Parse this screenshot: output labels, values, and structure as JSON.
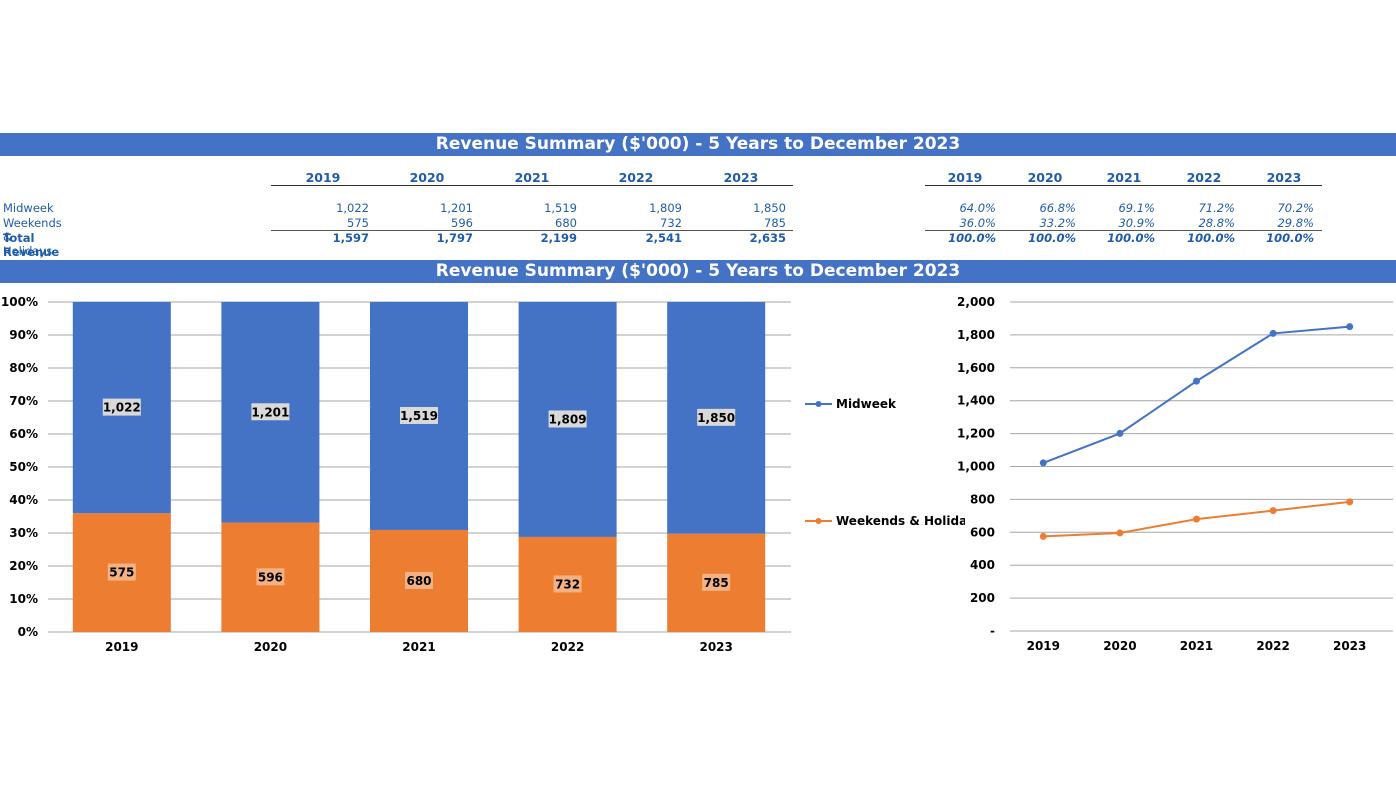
{
  "title1": "Revenue Summary ($'000) - 5 Years to December 2023",
  "title2": "Revenue Summary ($'000) - 5 Years to December 2023",
  "years": [
    "2019",
    "2020",
    "2021",
    "2022",
    "2023"
  ],
  "table": {
    "rows": [
      {
        "label": "Midweek",
        "values": [
          "1,022",
          "1,201",
          "1,519",
          "1,809",
          "1,850"
        ],
        "pct": [
          "64.0%",
          "66.8%",
          "69.1%",
          "71.2%",
          "70.2%"
        ]
      },
      {
        "label": "Weekends & Holidays",
        "values": [
          "575",
          "596",
          "680",
          "732",
          "785"
        ],
        "pct": [
          "36.0%",
          "33.2%",
          "30.9%",
          "28.8%",
          "29.8%"
        ]
      }
    ],
    "total": {
      "label": "Total Revenue",
      "values": [
        "1,597",
        "1,797",
        "2,199",
        "2,541",
        "2,635"
      ],
      "pct": [
        "100.0%",
        "100.0%",
        "100.0%",
        "100.0%",
        "100.0%"
      ]
    }
  },
  "chart_data": [
    {
      "type": "bar",
      "stacked": "percent",
      "categories": [
        "2019",
        "2020",
        "2021",
        "2022",
        "2023"
      ],
      "series": [
        {
          "name": "Weekends & Holidays",
          "values": [
            575,
            596,
            680,
            732,
            785
          ],
          "color": "#ed7d31"
        },
        {
          "name": "Midweek",
          "values": [
            1022,
            1201,
            1519,
            1809,
            1850
          ],
          "color": "#4472c4"
        }
      ],
      "ylim": [
        0,
        100
      ],
      "yticks": [
        "0%",
        "10%",
        "20%",
        "30%",
        "40%",
        "50%",
        "60%",
        "70%",
        "80%",
        "90%",
        "100%"
      ],
      "grid": true,
      "legend": "right"
    },
    {
      "type": "line",
      "categories": [
        "2019",
        "2020",
        "2021",
        "2022",
        "2023"
      ],
      "series": [
        {
          "name": "Midweek",
          "values": [
            1022,
            1201,
            1519,
            1809,
            1850
          ],
          "color": "#4472c4"
        },
        {
          "name": "Weekends & Holidays",
          "values": [
            575,
            596,
            680,
            732,
            785
          ],
          "color": "#ed7d31"
        }
      ],
      "ylim": [
        0,
        2000
      ],
      "yticks": [
        "-",
        "200",
        "400",
        "600",
        "800",
        "1,000",
        "1,200",
        "1,400",
        "1,600",
        "1,800",
        "2,000"
      ],
      "grid": true
    }
  ]
}
